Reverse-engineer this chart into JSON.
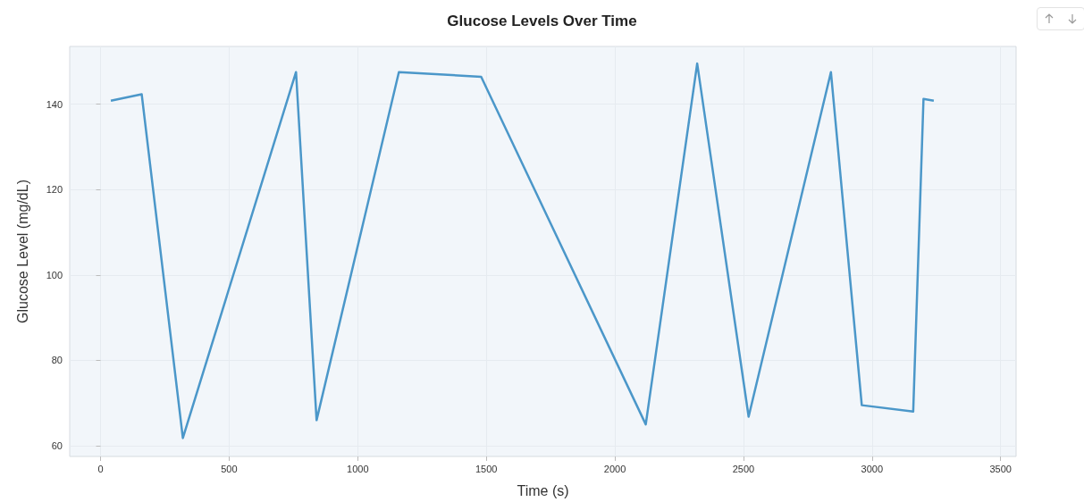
{
  "chart_data": {
    "type": "line",
    "title": "Glucose Levels Over Time",
    "xlabel": "Time (s)",
    "ylabel": "Glucose Level (mg/dL)",
    "x": [
      40,
      160,
      320,
      760,
      840,
      1160,
      1480,
      2120,
      2320,
      2520,
      2840,
      2960,
      3160,
      3200,
      3240
    ],
    "series": [
      {
        "color": "#4b97c9",
        "values": [
          140.8,
          142.3,
          61.8,
          147.5,
          66,
          147.5,
          146.4,
          65,
          149.5,
          66.8,
          147.5,
          69.5,
          68,
          141.2,
          140.8
        ]
      }
    ],
    "xlim": [
      -120,
      3560
    ],
    "xticks": [
      0,
      500,
      1000,
      1500,
      2000,
      2500,
      3000,
      3500
    ],
    "ylim": [
      57.5,
      153.5
    ],
    "yticks": [
      60,
      80,
      100,
      120,
      140
    ],
    "grid": true,
    "marker": "none",
    "line_style": "solid"
  }
}
